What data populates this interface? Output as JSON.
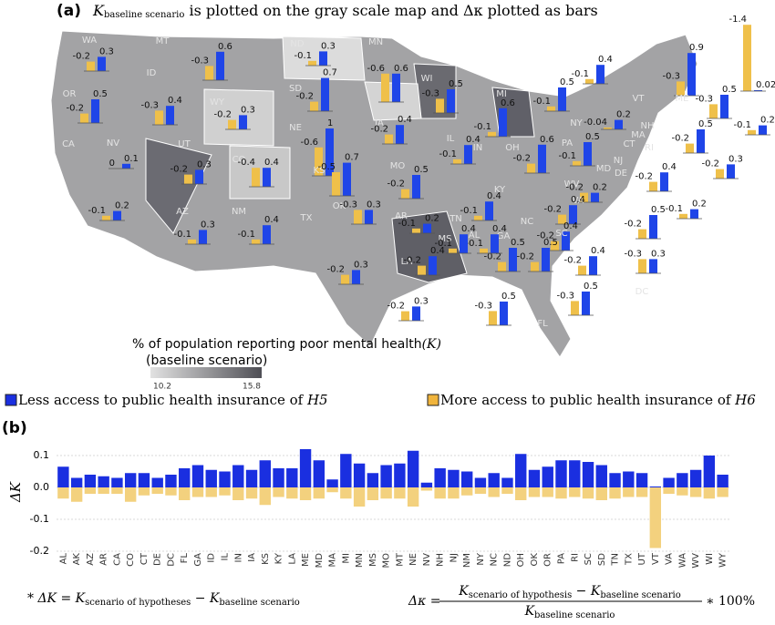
{
  "panel_a": {
    "label": "(a)",
    "title": [
      "K",
      "baseline scenario",
      " is plotted on the gray scale map and Δκ plotted as bars"
    ],
    "colorbar": {
      "title": [
        "% of population reporting poor mental health",
        "(K)",
        "(baseline scenario)"
      ],
      "min": 10.2,
      "max": 15.8
    },
    "states": [
      {
        "state": "WA",
        "more": -0.2,
        "less": 0.3
      },
      {
        "state": "MT",
        "more": -0.3,
        "less": 0.6
      },
      {
        "state": "ND",
        "more": -0.1,
        "less": 0.3
      },
      {
        "state": "MN",
        "more": -0.6,
        "less": 0.6
      },
      {
        "state": "OR",
        "more": -0.2,
        "less": 0.5
      },
      {
        "state": "ID",
        "more": -0.3,
        "less": 0.4
      },
      {
        "state": "WY",
        "more": -0.2,
        "less": 0.3
      },
      {
        "state": "SD",
        "more": -0.2,
        "less": 0.7
      },
      {
        "state": "WI",
        "more": -0.3,
        "less": 0.5
      },
      {
        "state": "MI",
        "more": -0.1,
        "less": 0.4
      },
      {
        "state": "NE",
        "more": -0.6,
        "less": 1.0
      },
      {
        "state": "IA",
        "more": -0.2,
        "less": 0.4
      },
      {
        "state": "CA",
        "more": -0.1,
        "less": 0.2
      },
      {
        "state": "NV",
        "more": 0,
        "less": 0.1
      },
      {
        "state": "UT",
        "more": -0.2,
        "less": 0.3
      },
      {
        "state": "CO",
        "more": -0.4,
        "less": 0.4
      },
      {
        "state": "KS",
        "more": -0.5,
        "less": 0.7
      },
      {
        "state": "MO",
        "more": -0.2,
        "less": 0.5
      },
      {
        "state": "IL",
        "more": -0.1,
        "less": 0.4
      },
      {
        "state": "IN",
        "more": -0.1,
        "less": 0.6
      },
      {
        "state": "OH",
        "more": -0.2,
        "less": 0.6
      },
      {
        "state": "PA",
        "more": -0.1,
        "less": 0.5
      },
      {
        "state": "NY",
        "more": -0.04,
        "less": 0.2
      },
      {
        "state": "VT",
        "more": -0.3,
        "less": 0.9
      },
      {
        "state": "ME",
        "more": -1.4,
        "less": 0.02
      },
      {
        "state": "NH",
        "more": -0.3,
        "less": 0.5
      },
      {
        "state": "MA",
        "more": -0.1,
        "less": 0.2
      },
      {
        "state": "CT",
        "more": -0.2,
        "less": 0.5
      },
      {
        "state": "RI",
        "more": -0.2,
        "less": 0.3
      },
      {
        "state": "NJ",
        "more": -0.2,
        "less": 0.4
      },
      {
        "state": "DE",
        "more": -0.1,
        "less": 0.2
      },
      {
        "state": "MD",
        "more": -0.2,
        "less": 0.5
      },
      {
        "state": "WV",
        "more": -0.2,
        "less": 0.2
      },
      {
        "state": "VA",
        "more": -0.2,
        "less": 0.4
      },
      {
        "state": "KY",
        "more": -0.1,
        "less": 0.4
      },
      {
        "state": "TN",
        "more": -0.2,
        "less": 0.4
      },
      {
        "state": "NC",
        "more": -0.2,
        "less": 0.4
      },
      {
        "state": "SC",
        "more": -0.2,
        "less": 0.5
      },
      {
        "state": "GA",
        "more": -0.2,
        "less": 0.5
      },
      {
        "state": "AL",
        "more": -0.1,
        "less": 0.4
      },
      {
        "state": "MS",
        "more": -0.1,
        "less": 0.4
      },
      {
        "state": "AR",
        "more": -0.1,
        "less": 0.2
      },
      {
        "state": "LA",
        "more": -0.2,
        "less": 0.4
      },
      {
        "state": "TX",
        "more": -0.2,
        "less": 0.3
      },
      {
        "state": "OK",
        "more": -0.3,
        "less": 0.3
      },
      {
        "state": "NM",
        "more": -0.1,
        "less": 0.4
      },
      {
        "state": "AZ",
        "more": -0.1,
        "less": 0.3
      },
      {
        "state": "FL",
        "more": -0.3,
        "less": 0.5
      },
      {
        "state": "DC",
        "more": -0.3,
        "less": 0.3
      },
      {
        "state": null,
        "more": -0.2,
        "less": 0.3
      },
      {
        "state": null,
        "more": -0.3,
        "less": 0.5
      },
      {
        "state": null,
        "more": -0.1,
        "less": 0.5
      }
    ]
  },
  "legend": {
    "less": [
      "Less access to public health insurance of ",
      "H5"
    ],
    "more": [
      "More access to public health insurance of ",
      "H6"
    ]
  },
  "chart_data": {
    "type": "bar",
    "label": "(b)",
    "ylabel": "ΔK",
    "categories": [
      "AL",
      "AK",
      "AZ",
      "AR",
      "CA",
      "CO",
      "CT",
      "DE",
      "DC",
      "FL",
      "GA",
      "ID",
      "IL",
      "IN",
      "IA",
      "KS",
      "KY",
      "LA",
      "ME",
      "MD",
      "MA",
      "MI",
      "MN",
      "MS",
      "MO",
      "MT",
      "NE",
      "NV",
      "NH",
      "NJ",
      "NM",
      "NY",
      "NC",
      "ND",
      "OH",
      "OK",
      "OR",
      "PA",
      "RI",
      "SC",
      "SD",
      "TN",
      "TX",
      "UT",
      "VT",
      "VA",
      "WA",
      "WV",
      "WI",
      "WY"
    ],
    "series": [
      {
        "name": "Less access to public health insurance of H5",
        "color": "#1a2fe0",
        "values": [
          0.065,
          0.03,
          0.04,
          0.035,
          0.03,
          0.045,
          0.045,
          0.03,
          0.04,
          0.06,
          0.07,
          0.055,
          0.05,
          0.07,
          0.055,
          0.085,
          0.06,
          0.06,
          0.12,
          0.085,
          0.025,
          0.105,
          0.075,
          0.045,
          0.07,
          0.075,
          0.115,
          0.015,
          0.06,
          0.055,
          0.05,
          0.03,
          0.045,
          0.03,
          0.105,
          0.055,
          0.065,
          0.085,
          0.085,
          0.08,
          0.07,
          0.045,
          0.05,
          0.045,
          0.003,
          0.03,
          0.045,
          0.055,
          0.1,
          0.04
        ]
      },
      {
        "name": "More access to public health insurance of H6",
        "color": "#f3d17e",
        "values": [
          -0.035,
          -0.045,
          -0.02,
          -0.02,
          -0.02,
          -0.045,
          -0.025,
          -0.02,
          -0.025,
          -0.04,
          -0.03,
          -0.03,
          -0.025,
          -0.04,
          -0.035,
          -0.055,
          -0.03,
          -0.035,
          -0.04,
          -0.035,
          -0.015,
          -0.035,
          -0.06,
          -0.04,
          -0.035,
          -0.035,
          -0.06,
          -0.01,
          -0.035,
          -0.035,
          -0.025,
          -0.02,
          -0.03,
          -0.02,
          -0.04,
          -0.03,
          -0.03,
          -0.035,
          -0.03,
          -0.035,
          -0.04,
          -0.035,
          -0.03,
          -0.03,
          -0.19,
          -0.02,
          -0.025,
          -0.03,
          -0.035,
          -0.03
        ]
      }
    ],
    "ylim": [
      -0.22,
      0.13
    ],
    "yticks": [
      0.1,
      {
        "value": 0,
        "label": "0.0"
      },
      -0.1,
      -0.2
    ],
    "grid": true
  },
  "footnote_left": [
    "* ΔK = K",
    "scenario of hypotheses",
    " − K",
    "baseline  scenario"
  ],
  "formula_right": {
    "lhs": "Δκ =",
    "numerator": [
      "K",
      "scenario of hypothesis",
      " − K",
      "baseline scenario"
    ],
    "denominator": [
      "K",
      "baseline scenario"
    ],
    "factor": "∗ 100%"
  }
}
